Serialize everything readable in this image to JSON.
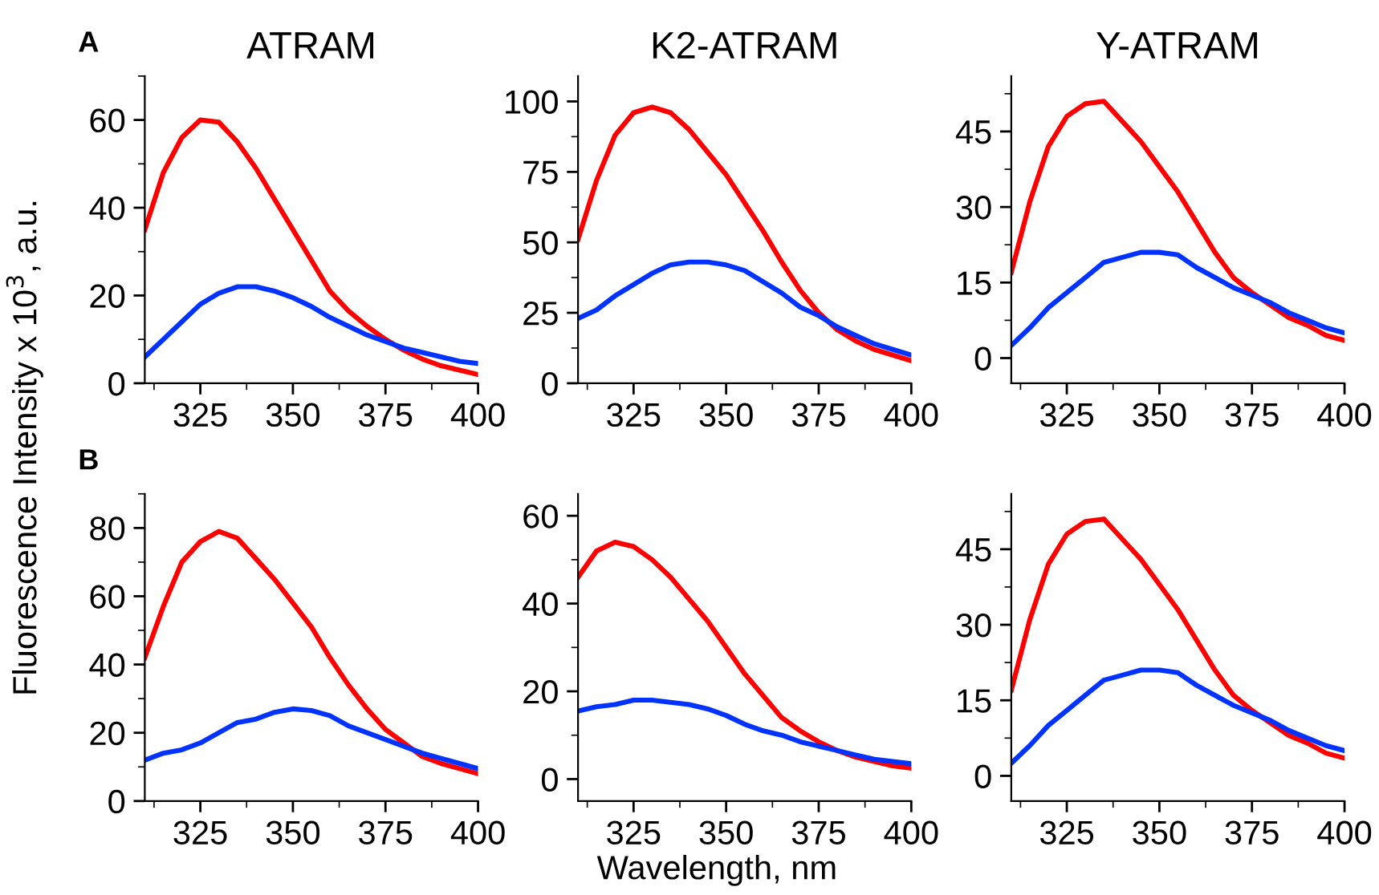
{
  "chart_data": [
    {
      "type": "line",
      "title": "ATRAM",
      "ylabel": "Fluorescence Intensity x 10$^{3}$, a.u.",
      "annotations": [
        "A"
      ],
      "x": [
        310,
        315,
        320,
        325,
        330,
        335,
        340,
        345,
        350,
        355,
        360,
        365,
        370,
        375,
        380,
        385,
        390,
        395,
        400
      ],
      "xlim": [
        310,
        400
      ],
      "xticks": [
        325,
        350,
        375,
        400
      ],
      "ylim": [
        0,
        70
      ],
      "yticks": [
        0,
        20,
        40,
        60
      ],
      "grid": false,
      "legend": false,
      "marker": "none",
      "line_style": "solid",
      "series": [
        {
          "color": "#ff0000",
          "values": [
            35,
            48,
            56,
            60,
            59.5,
            55,
            49,
            42,
            35,
            28,
            21,
            16.5,
            13,
            10,
            7.5,
            5.5,
            4,
            3,
            2
          ]
        },
        {
          "color": "#0033ff",
          "values": [
            6,
            10,
            14,
            18,
            20.5,
            22,
            22,
            21,
            19.5,
            17.5,
            15,
            13,
            11,
            9.5,
            8,
            7,
            6,
            5,
            4.5
          ]
        }
      ]
    },
    {
      "type": "line",
      "title": "K2-ATRAM",
      "x": [
        310,
        315,
        320,
        325,
        330,
        335,
        340,
        345,
        350,
        355,
        360,
        365,
        370,
        375,
        380,
        385,
        390,
        395,
        400
      ],
      "xlim": [
        310,
        400
      ],
      "xticks": [
        325,
        350,
        375,
        400
      ],
      "ylim": [
        0,
        109
      ],
      "yticks": [
        0,
        25,
        50,
        75,
        100
      ],
      "grid": false,
      "legend": false,
      "marker": "none",
      "line_style": "solid",
      "series": [
        {
          "color": "#ff0000",
          "values": [
            51,
            72,
            88,
            96,
            98,
            96,
            90,
            82,
            74,
            64,
            54,
            43,
            33,
            25,
            19,
            15,
            12,
            10,
            8
          ]
        },
        {
          "color": "#0033ff",
          "values": [
            23,
            26,
            31,
            35,
            39,
            42,
            43,
            43,
            42,
            40,
            36,
            32,
            27,
            24,
            20,
            17,
            14,
            12,
            10
          ]
        }
      ]
    },
    {
      "type": "line",
      "title": "Y-ATRAM",
      "x": [
        310,
        315,
        320,
        325,
        330,
        335,
        340,
        345,
        350,
        355,
        360,
        365,
        370,
        375,
        380,
        385,
        390,
        395,
        400
      ],
      "xlim": [
        310,
        400
      ],
      "xticks": [
        325,
        350,
        375,
        400
      ],
      "ylim": [
        -5,
        56
      ],
      "yticks": [
        0,
        15,
        30,
        45
      ],
      "grid": false,
      "legend": false,
      "marker": "none",
      "line_style": "solid",
      "series": [
        {
          "color": "#ff0000",
          "values": [
            17,
            31,
            42,
            48,
            50.5,
            51,
            47,
            43,
            38,
            33,
            27,
            21,
            16,
            13,
            10.5,
            8,
            6.5,
            4.5,
            3.5
          ]
        },
        {
          "color": "#0033ff",
          "values": [
            2.5,
            6,
            10,
            13,
            16,
            19,
            20,
            21,
            21,
            20.5,
            18,
            16,
            14,
            12.5,
            11,
            9,
            7.5,
            6,
            5
          ]
        }
      ]
    },
    {
      "type": "line",
      "annotations": [
        "B"
      ],
      "x": [
        310,
        315,
        320,
        325,
        330,
        335,
        340,
        345,
        350,
        355,
        360,
        365,
        370,
        375,
        380,
        385,
        390,
        395,
        400
      ],
      "xlim": [
        310,
        400
      ],
      "xticks": [
        325,
        350,
        375,
        400
      ],
      "ylim": [
        0,
        90
      ],
      "yticks": [
        0,
        20,
        40,
        60,
        80
      ],
      "grid": false,
      "legend": false,
      "marker": "none",
      "line_style": "solid",
      "series": [
        {
          "color": "#ff0000",
          "values": [
            42,
            57,
            70,
            76,
            79,
            77,
            71,
            65,
            58,
            51,
            42,
            34,
            27,
            21,
            17,
            13,
            11,
            9.5,
            8
          ]
        },
        {
          "color": "#0033ff",
          "values": [
            12,
            14,
            15,
            17,
            20,
            23,
            24,
            26,
            27,
            26.5,
            25,
            22,
            20,
            18,
            16,
            14,
            12.5,
            11,
            9.5
          ]
        }
      ]
    },
    {
      "type": "line",
      "xlabel": "Wavelength, nm",
      "x": [
        310,
        315,
        320,
        325,
        330,
        335,
        340,
        345,
        350,
        355,
        360,
        365,
        370,
        375,
        380,
        385,
        390,
        395,
        400
      ],
      "xlim": [
        310,
        400
      ],
      "xticks": [
        325,
        350,
        375,
        400
      ],
      "ylim": [
        -5,
        65
      ],
      "yticks": [
        0,
        20,
        40,
        60
      ],
      "grid": false,
      "legend": false,
      "marker": "none",
      "line_style": "solid",
      "series": [
        {
          "color": "#ff0000",
          "values": [
            46,
            52,
            54,
            53,
            50,
            46,
            41,
            36,
            30,
            24,
            19,
            14,
            11,
            8.5,
            6.5,
            5,
            4,
            3,
            2.5
          ]
        },
        {
          "color": "#0033ff",
          "values": [
            15.5,
            16.5,
            17,
            18,
            18,
            17.5,
            17,
            16,
            14.5,
            12.5,
            11,
            10,
            8.5,
            7.5,
            6.5,
            5.5,
            4.5,
            4,
            3.5
          ]
        }
      ]
    },
    {
      "type": "line",
      "x": [
        310,
        315,
        320,
        325,
        330,
        335,
        340,
        345,
        350,
        355,
        360,
        365,
        370,
        375,
        380,
        385,
        390,
        395,
        400
      ],
      "xlim": [
        310,
        400
      ],
      "xticks": [
        325,
        350,
        375,
        400
      ],
      "ylim": [
        -5,
        56
      ],
      "yticks": [
        0,
        15,
        30,
        45
      ],
      "grid": false,
      "legend": false,
      "marker": "none",
      "line_style": "solid",
      "series": [
        {
          "color": "#ff0000",
          "values": [
            17,
            31,
            42,
            48,
            50.5,
            51,
            47,
            43,
            38,
            33,
            27,
            21,
            16,
            13,
            10.5,
            8,
            6.5,
            4.5,
            3.5
          ]
        },
        {
          "color": "#0033ff",
          "values": [
            2.5,
            6,
            10,
            13,
            16,
            19,
            20,
            21,
            21,
            20.5,
            18,
            16,
            14,
            12.5,
            11,
            9,
            7.5,
            6,
            5
          ]
        }
      ]
    }
  ]
}
